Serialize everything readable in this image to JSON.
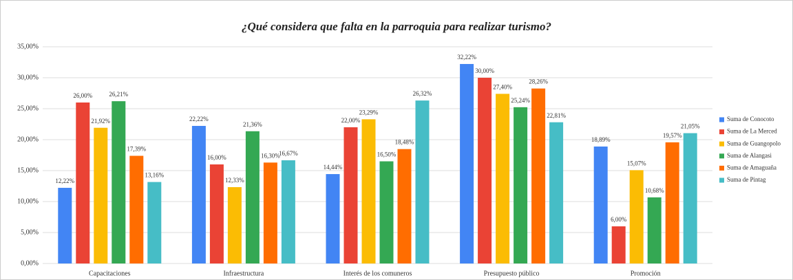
{
  "chart_data": {
    "type": "bar",
    "title": "¿Qué considera que falta en la parroquia para realizar turismo?",
    "categories": [
      "Capacitaciones",
      "Infraestructura",
      "Interés de los comuneros",
      "Presupuesto público",
      "Promoción"
    ],
    "series": [
      {
        "name": "Suma de Conocoto",
        "color": "#4285f4",
        "values": [
          12.22,
          22.22,
          14.44,
          32.22,
          18.89
        ],
        "value_labels": [
          "12,22%",
          "22,22%",
          "14,44%",
          "32,22%",
          "18,89%"
        ]
      },
      {
        "name": "Suma de La Merced",
        "color": "#ea4335",
        "values": [
          26.0,
          16.0,
          22.0,
          30.0,
          6.0
        ],
        "value_labels": [
          "26,00%",
          "16,00%",
          "22,00%",
          "30,00%",
          "6,00%"
        ]
      },
      {
        "name": "Suma de Guangopolo",
        "color": "#fbbc04",
        "values": [
          21.92,
          12.33,
          23.29,
          27.4,
          15.07
        ],
        "value_labels": [
          "21,92%",
          "12,33%",
          "23,29%",
          "27,40%",
          "15,07%"
        ]
      },
      {
        "name": "Suma de Alangasi",
        "color": "#34a853",
        "values": [
          26.21,
          21.36,
          16.5,
          25.24,
          10.68
        ],
        "value_labels": [
          "26,21%",
          "21,36%",
          "16,50%",
          "25,24%",
          "10,68%"
        ]
      },
      {
        "name": "Suma de Amaguaña",
        "color": "#ff6d01",
        "values": [
          17.39,
          16.3,
          18.48,
          28.26,
          19.57
        ],
        "value_labels": [
          "17,39%",
          "16,30%",
          "18,48%",
          "28,26%",
          "19,57%"
        ]
      },
      {
        "name": "Suma de Pintag",
        "color": "#46bdc6",
        "values": [
          13.16,
          16.67,
          26.32,
          22.81,
          21.05
        ],
        "value_labels": [
          "13,16%",
          "16,67%",
          "26,32%",
          "22,81%",
          "21,05%"
        ]
      }
    ],
    "ylim": [
      0,
      35
    ],
    "yticks": [
      {
        "value": 0,
        "label": "0,00%"
      },
      {
        "value": 5,
        "label": "5,00%"
      },
      {
        "value": 10,
        "label": "10,00%"
      },
      {
        "value": 15,
        "label": "15,00%"
      },
      {
        "value": 20,
        "label": "20,00%"
      },
      {
        "value": 25,
        "label": "25,00%"
      },
      {
        "value": 30,
        "label": "30,00%"
      },
      {
        "value": 35,
        "label": "35,00%"
      }
    ],
    "grid": true,
    "legend": "right"
  }
}
